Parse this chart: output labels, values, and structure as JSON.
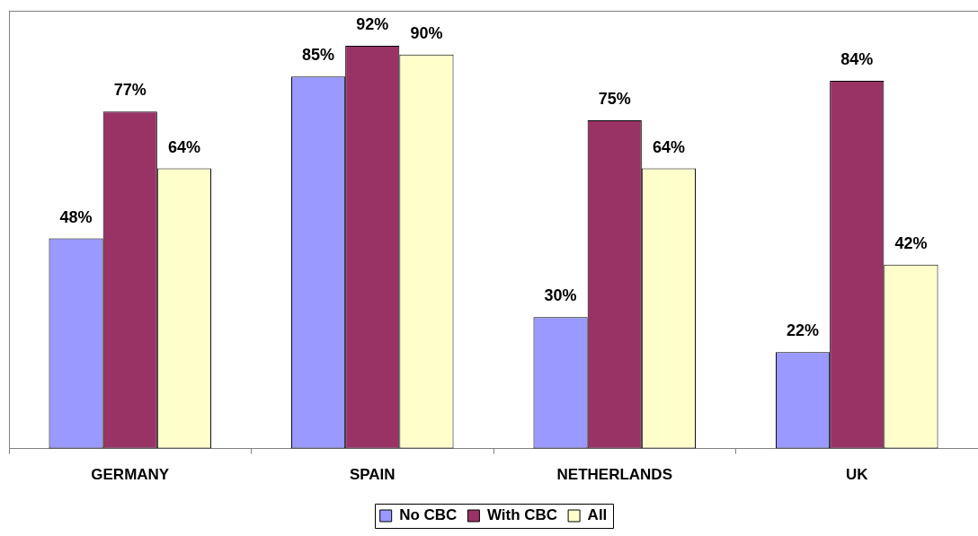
{
  "chart_data": {
    "type": "bar",
    "categories": [
      "GERMANY",
      "SPAIN",
      "NETHERLANDS",
      "UK"
    ],
    "series": [
      {
        "name": "No CBC",
        "color": "#9999ff",
        "values": [
          48,
          85,
          30,
          22
        ],
        "value_labels": [
          "48%",
          "85%",
          "30%",
          "22%"
        ]
      },
      {
        "name": "With CBC",
        "color": "#993366",
        "values": [
          77,
          92,
          75,
          84
        ],
        "value_labels": [
          "77%",
          "92%",
          "75%",
          "84%"
        ]
      },
      {
        "name": "All",
        "color": "#ffffcc",
        "values": [
          64,
          90,
          64,
          42
        ],
        "value_labels": [
          "64%",
          "90%",
          "64%",
          "42%"
        ]
      }
    ],
    "ylim": [
      0,
      100
    ],
    "tick_labels": "x",
    "grid": false,
    "legend": "bottom"
  }
}
